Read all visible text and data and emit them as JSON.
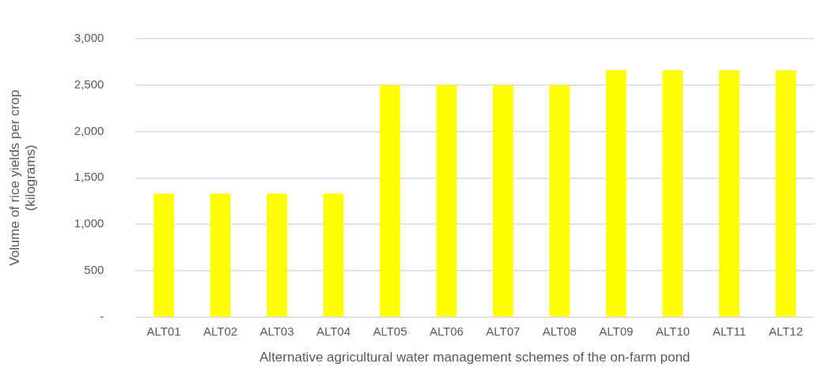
{
  "chart_data": {
    "type": "bar",
    "xlabel": "Alternative agricultural water management schemes of the on-farm pond",
    "ylabel": "Volume of rice yields per crop\n(kilograms)",
    "categories": [
      "ALT01",
      "ALT02",
      "ALT03",
      "ALT04",
      "ALT05",
      "ALT06",
      "ALT07",
      "ALT08",
      "ALT09",
      "ALT10",
      "ALT11",
      "ALT12"
    ],
    "values": [
      1330,
      1330,
      1330,
      1330,
      2500,
      2500,
      2500,
      2500,
      2660,
      2660,
      2660,
      2660
    ],
    "color": "#ffff00",
    "ylim": [
      0,
      3000
    ],
    "yticks": [
      {
        "value": 0,
        "label": "-"
      },
      {
        "value": 500,
        "label": "500"
      },
      {
        "value": 1000,
        "label": "1,000"
      },
      {
        "value": 1500,
        "label": "1,500"
      },
      {
        "value": 2000,
        "label": "2,000"
      },
      {
        "value": 2500,
        "label": "2,500"
      },
      {
        "value": 3000,
        "label": "3,000"
      }
    ],
    "grid": "y",
    "legend": false
  }
}
